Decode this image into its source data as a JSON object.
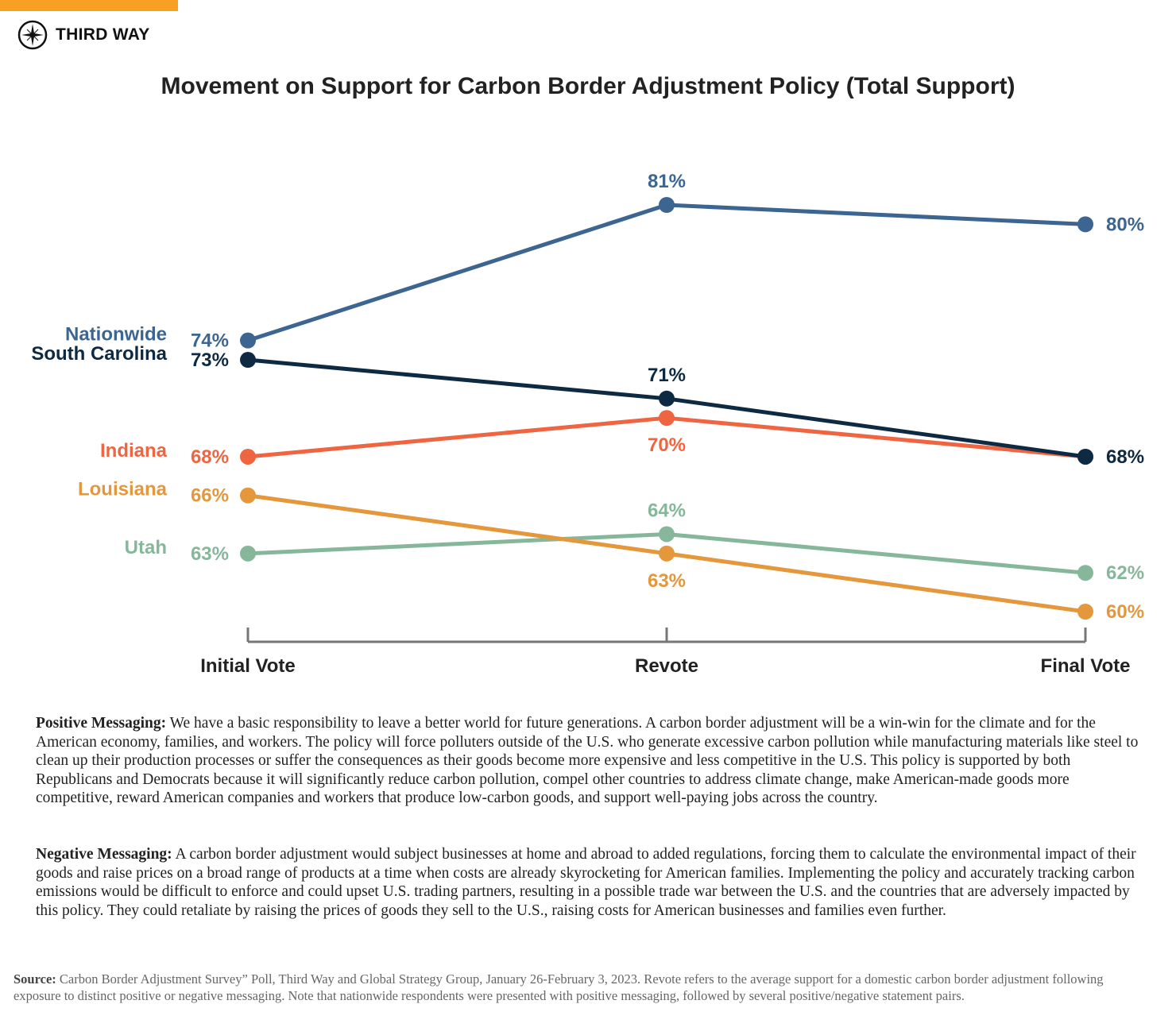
{
  "brand": {
    "name": "THIRD WAY",
    "accent": "#f7a024",
    "logo_icon": "compass-star-icon"
  },
  "chart_data": {
    "type": "line",
    "title": "Movement on Support for Carbon Border Adjustment Policy (Total Support)",
    "categories": [
      "Initial Vote",
      "Revote",
      "Final Vote"
    ],
    "unit": "%",
    "ylim": [
      60,
      81
    ],
    "grid": false,
    "series": [
      {
        "name": "Nationwide",
        "color": "#3d6591",
        "values": [
          74,
          81,
          80
        ],
        "labels": [
          "74%",
          "81%",
          "80%"
        ],
        "revote_label": "above",
        "show_final_label": true
      },
      {
        "name": "South Carolina",
        "color": "#0e2a43",
        "values": [
          73,
          71,
          68
        ],
        "labels": [
          "73%",
          "71%",
          "68%"
        ],
        "revote_label": "above",
        "show_final_label": true
      },
      {
        "name": "Indiana",
        "color": "#ef6541",
        "values": [
          68,
          70,
          68
        ],
        "labels": [
          "68%",
          "70%",
          "68%"
        ],
        "revote_label": "below",
        "show_final_label": false
      },
      {
        "name": "Louisiana",
        "color": "#e4973b",
        "values": [
          66,
          63,
          60
        ],
        "labels": [
          "66%",
          "63%",
          "60%"
        ],
        "revote_label": "below",
        "show_final_label": true
      },
      {
        "name": "Utah",
        "color": "#86b79a",
        "values": [
          63,
          64,
          62
        ],
        "labels": [
          "63%",
          "64%",
          "62%"
        ],
        "revote_label": "above",
        "show_final_label": true
      }
    ]
  },
  "messaging": {
    "positive_label": "Positive Messaging:",
    "positive_text": " We have a basic responsibility to leave a better world for future generations. A carbon border adjustment will be a win-win for the climate and for the American economy, families, and workers. The policy will force polluters outside of the U.S. who generate excessive carbon pollution while manufacturing materials like steel to clean up their production processes or suffer the consequences as their goods become more expensive and less competitive in the U.S. This policy is supported by both Republicans and Democrats because it will significantly reduce carbon pollution, compel other countries to address climate change, make American-made goods more competitive, reward American companies and workers that produce low-carbon goods, and support well-paying jobs across the country.",
    "negative_label": "Negative Messaging:",
    "negative_text": " A carbon border adjustment would subject businesses at home and abroad to added regulations, forcing them to calculate the environmental impact of their goods and raise prices on a broad range of products at a time when costs are already skyrocketing for American families. Implementing the policy and accurately tracking carbon emissions would be difficult to enforce and could upset U.S. trading partners, resulting in a possible trade war between the U.S. and the countries that are adversely impacted by this policy. They could retaliate by raising the prices of goods they sell to the U.S., raising costs for American businesses and families even further."
  },
  "source": {
    "label": "Source:",
    "text": " Carbon Border Adjustment Survey” Poll, Third Way and Global Strategy Group, January 26-February 3, 2023. Revote refers to the average support for a domestic carbon border adjustment following exposure to distinct positive or negative messaging. Note that nationwide respondents were presented with positive messaging, followed by several positive/negative statement pairs."
  }
}
